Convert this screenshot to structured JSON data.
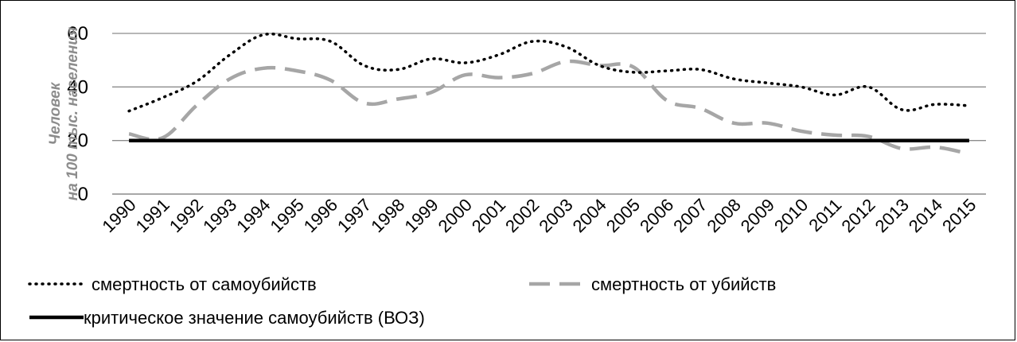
{
  "chart_data": {
    "type": "line",
    "x": [
      "1990",
      "1991",
      "1992",
      "1993",
      "1994",
      "1995",
      "1996",
      "1997",
      "1998",
      "1999",
      "2000",
      "2001",
      "2002",
      "2003",
      "2004",
      "2005",
      "2006",
      "2007",
      "2008",
      "2009",
      "2010",
      "2011",
      "2012",
      "2013",
      "2014",
      "2015"
    ],
    "ylabel_line1": "Человек",
    "ylabel_line2": "на 100 тыс. населения",
    "ylim": [
      0,
      60
    ],
    "yticks": [
      0,
      20,
      40,
      60
    ],
    "grid": true,
    "legend_position": "bottom",
    "series": [
      {
        "name": "смертность от самоубийств",
        "style": "dotted",
        "color": "#000000",
        "values": [
          31,
          36,
          42,
          52,
          59.5,
          58,
          57,
          48,
          46.5,
          50.5,
          49,
          52,
          57,
          55,
          48,
          45.5,
          46,
          46.5,
          43,
          41.5,
          40,
          37,
          40,
          31.5,
          33.5,
          33
        ]
      },
      {
        "name": "смертность от убийств",
        "style": "dashed",
        "color": "#a6a6a6",
        "values": [
          22.5,
          21,
          33,
          43,
          47,
          46,
          42.5,
          34,
          35.5,
          38,
          44.5,
          43.5,
          45,
          49.5,
          48,
          47.5,
          35,
          32,
          26.5,
          26.5,
          23.5,
          22,
          21.5,
          17,
          17.5,
          15
        ]
      },
      {
        "name": "критическое значение самоубийств (ВОЗ)",
        "style": "solid",
        "color": "#000000",
        "values": [
          20,
          20,
          20,
          20,
          20,
          20,
          20,
          20,
          20,
          20,
          20,
          20,
          20,
          20,
          20,
          20,
          20,
          20,
          20,
          20,
          20,
          20,
          20,
          20,
          20,
          20
        ]
      }
    ]
  }
}
